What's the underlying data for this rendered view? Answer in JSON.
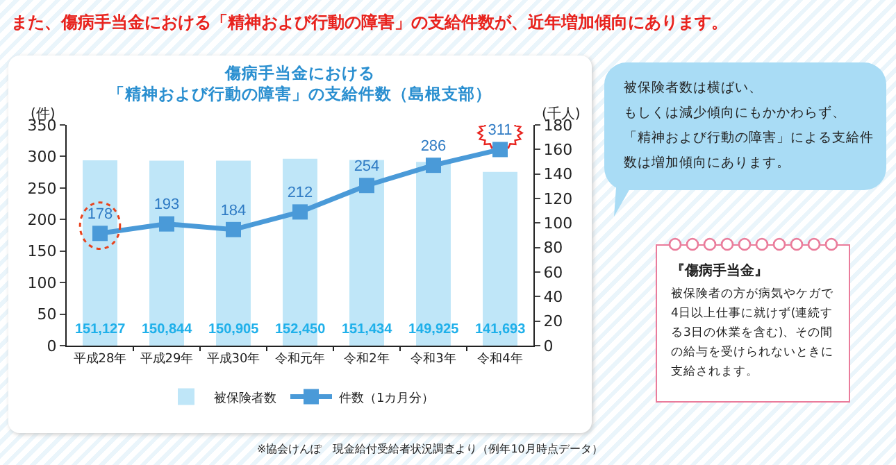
{
  "chart_data": {
    "type": "bar",
    "title": "傷病手当金における「精神および行動の障害」の支給件数（島根支部）",
    "categories": [
      "平成28年",
      "平成29年",
      "平成30年",
      "令和元年",
      "令和2年",
      "令和3年",
      "令和4年"
    ],
    "series": [
      {
        "name": "被保険者数",
        "axis": "y2",
        "color": "#bfe6f8",
        "values": [
          151.127,
          150.844,
          150.905,
          152.45,
          151.434,
          149.925,
          141.693
        ]
      },
      {
        "name": "件数（1カ月分）",
        "type": "line",
        "color": "#4a9ad8",
        "values": [
          178,
          193,
          184,
          212,
          254,
          286,
          311
        ],
        "value_labels": [
          "178",
          "193",
          "184",
          "212",
          "254",
          "286",
          "311"
        ]
      }
    ],
    "ylabel": "(件)",
    "y2label": "(千人)",
    "ylim": [
      0,
      350
    ],
    "yticks": [
      0,
      50,
      100,
      150,
      200,
      250,
      300,
      350
    ],
    "y2lim": [
      0,
      180
    ],
    "y2ticks": [
      0,
      20,
      40,
      60,
      80,
      100,
      120,
      140,
      160,
      180
    ],
    "marker": "square",
    "line_style": "solid",
    "grid": false,
    "legend": "bottom",
    "annotations": [
      "また、傷病手当金における「精神および行動の障害」の支給件数が、近年増加傾向にあります。",
      "被保険者数は横ばい、もしくは減少傾向にもかかわらず、「精神および行動の障害」による支給件数は増加傾向にあります。",
      "『傷病手当金』",
      "被保険者の方が病気やケガで4日以上仕事に就けず(連続する3日の休業を含む)、その間の給与を受けられないときに支給されます。",
      "※協会けんぽ　現金給付受給者状況調査より（例年10月時点データ）",
      "151,127",
      "150,844",
      "150,905",
      "152,450",
      "151,434",
      "149,925",
      "141,693"
    ]
  }
}
